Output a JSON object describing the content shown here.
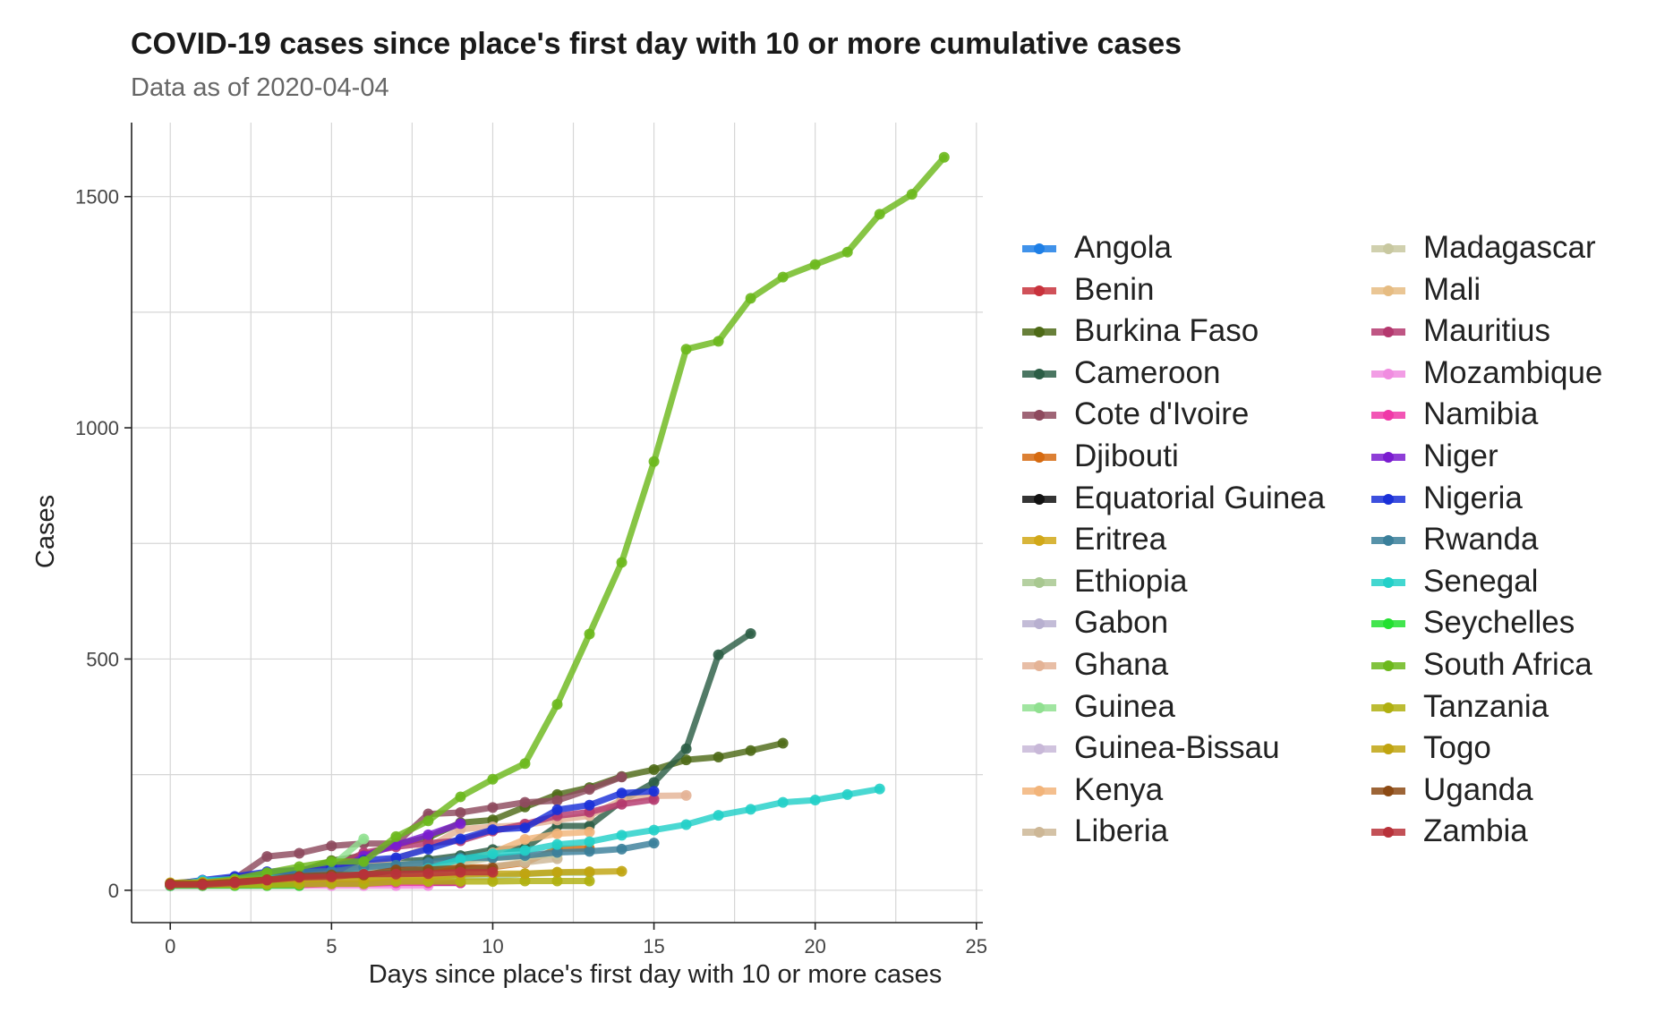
{
  "chart_data": {
    "type": "line",
    "title": "COVID-19 cases since place's first day with 10 or more cumulative cases",
    "subtitle": "Data as of 2020-04-04",
    "xlabel": "Days since place's first day with 10 or more cases",
    "ylabel": "Cases",
    "xlim": [
      -1.2,
      25.2
    ],
    "ylim": [
      -70,
      1660
    ],
    "x_ticks": [
      0,
      5,
      10,
      15,
      20,
      25
    ],
    "y_ticks": [
      0,
      500,
      1000,
      1500
    ],
    "grid": true,
    "legend_position": "right",
    "series": [
      {
        "name": "Angola",
        "color": "#1E7FE6",
        "x": [
          0,
          1,
          2,
          3,
          4
        ],
        "y": [
          10,
          10,
          14,
          14,
          14
        ]
      },
      {
        "name": "Benin",
        "color": "#C8323C",
        "x": [
          0,
          1,
          2,
          3,
          4,
          5,
          6,
          7,
          8,
          9
        ],
        "y": [
          13,
          16,
          16,
          20,
          22,
          26,
          26,
          26,
          26,
          26
        ]
      },
      {
        "name": "Burkina Faso",
        "color": "#4E6A17",
        "x": [
          0,
          1,
          2,
          3,
          4,
          5,
          6,
          7,
          8,
          9,
          10,
          11,
          12,
          13,
          14,
          15,
          16,
          17,
          18,
          19
        ],
        "y": [
          15,
          20,
          27,
          33,
          40,
          64,
          75,
          99,
          114,
          146,
          152,
          180,
          207,
          222,
          246,
          261,
          282,
          288,
          302,
          318
        ]
      },
      {
        "name": "Cameroon",
        "color": "#2C5E46",
        "x": [
          0,
          1,
          2,
          3,
          4,
          5,
          6,
          7,
          8,
          9,
          10,
          11,
          12,
          13,
          14,
          15,
          16,
          17,
          18
        ],
        "y": [
          10,
          13,
          20,
          27,
          40,
          40,
          56,
          62,
          66,
          75,
          88,
          91,
          139,
          139,
          193,
          233,
          306,
          509,
          555
        ]
      },
      {
        "name": "Cote d'Ivoire",
        "color": "#8E4A5E",
        "x": [
          0,
          1,
          2,
          3,
          4,
          5,
          6,
          7,
          8,
          9,
          10,
          11,
          12,
          13,
          14
        ],
        "y": [
          14,
          17,
          25,
          73,
          80,
          96,
          101,
          101,
          165,
          168,
          179,
          190,
          194,
          218,
          245
        ]
      },
      {
        "name": "Djibouti",
        "color": "#D66A10",
        "x": [
          0,
          1,
          2,
          3,
          4,
          5,
          6,
          7,
          8,
          9,
          10,
          11,
          12,
          13
        ],
        "y": [
          11,
          12,
          14,
          18,
          18,
          30,
          33,
          40,
          49,
          49,
          50,
          59,
          90,
          90
        ]
      },
      {
        "name": "Equatorial Guinea",
        "color": "#111111",
        "x": [
          0,
          1,
          2,
          3,
          4,
          5,
          6,
          7,
          8,
          9
        ],
        "y": [
          12,
          12,
          12,
          12,
          13,
          14,
          15,
          16,
          16,
          16
        ]
      },
      {
        "name": "Eritrea",
        "color": "#D1A818",
        "x": [
          0,
          1,
          2,
          3,
          4,
          5,
          6,
          7,
          8,
          9
        ],
        "y": [
          12,
          12,
          12,
          15,
          15,
          22,
          22,
          22,
          22,
          29
        ]
      },
      {
        "name": "Ethiopia",
        "color": "#A8C890",
        "x": [
          0,
          1,
          2,
          3,
          4,
          5,
          6,
          7,
          8,
          9,
          10,
          11,
          12,
          13
        ],
        "y": [
          11,
          12,
          12,
          12,
          16,
          16,
          21,
          23,
          26,
          29,
          29,
          35,
          38,
          38
        ]
      },
      {
        "name": "Gabon",
        "color": "#B8B0D0",
        "x": [
          0,
          1,
          2,
          3,
          4,
          5,
          6,
          7,
          8
        ],
        "y": [
          11,
          11,
          13,
          16,
          16,
          18,
          18,
          21,
          21
        ]
      },
      {
        "name": "Ghana",
        "color": "#E4B396",
        "x": [
          0,
          1,
          2,
          3,
          4,
          5,
          6,
          7,
          8,
          9,
          10,
          11,
          12,
          13,
          14,
          15,
          16
        ],
        "y": [
          11,
          16,
          19,
          21,
          24,
          27,
          53,
          68,
          93,
          132,
          137,
          141,
          152,
          161,
          195,
          204,
          205
        ]
      },
      {
        "name": "Guinea",
        "color": "#90E090",
        "x": [
          0,
          1,
          2,
          3,
          4,
          5,
          6
        ],
        "y": [
          11,
          11,
          16,
          22,
          30,
          52,
          111
        ]
      },
      {
        "name": "Guinea-Bissau",
        "color": "#C8B8D8",
        "x": [
          0,
          1,
          2,
          3,
          4,
          5,
          6,
          7
        ],
        "y": [
          12,
          12,
          15,
          15,
          15,
          18,
          18,
          18
        ]
      },
      {
        "name": "Kenya",
        "color": "#F2B47A",
        "x": [
          0,
          1,
          2,
          3,
          4,
          5,
          6,
          7,
          8,
          9,
          10,
          11,
          12,
          13
        ],
        "y": [
          15,
          15,
          15,
          25,
          28,
          31,
          38,
          42,
          50,
          59,
          81,
          110,
          122,
          126
        ]
      },
      {
        "name": "Liberia",
        "color": "#CDB796",
        "x": [
          0,
          1,
          2,
          3,
          4,
          5,
          6,
          7,
          8,
          9,
          10,
          11,
          12
        ],
        "y": [
          10,
          10,
          13,
          13,
          14,
          15,
          18,
          22,
          30,
          40,
          52,
          60,
          68
        ]
      },
      {
        "name": "Madagascar",
        "color": "#C8C8A0",
        "x": [
          0,
          1,
          2,
          3,
          4,
          5,
          6,
          7,
          8,
          9,
          10,
          11,
          12
        ],
        "y": [
          12,
          17,
          19,
          23,
          26,
          39,
          43,
          57,
          57,
          59,
          70,
          72,
          77
        ]
      },
      {
        "name": "Mali",
        "color": "#E6BC82",
        "x": [
          0,
          1,
          2,
          3,
          4,
          5,
          6,
          7,
          8
        ],
        "y": [
          11,
          18,
          20,
          25,
          28,
          31,
          36,
          39,
          41
        ]
      },
      {
        "name": "Mauritius",
        "color": "#B4386E",
        "x": [
          0,
          1,
          2,
          3,
          4,
          5,
          6,
          7,
          8,
          9,
          10,
          11,
          12,
          13,
          14,
          15
        ],
        "y": [
          14,
          18,
          28,
          36,
          42,
          48,
          81,
          94,
          102,
          107,
          128,
          143,
          161,
          169,
          186,
          196
        ]
      },
      {
        "name": "Mozambique",
        "color": "#F08CE0",
        "x": [
          0,
          1,
          2,
          3,
          4,
          5,
          6,
          7,
          8
        ],
        "y": [
          10,
          10,
          10,
          10,
          10,
          10,
          10,
          10,
          10
        ]
      },
      {
        "name": "Namibia",
        "color": "#F038A8",
        "x": [
          0,
          1,
          2,
          3,
          4,
          5,
          6,
          7,
          8,
          9
        ],
        "y": [
          11,
          11,
          11,
          11,
          11,
          14,
          14,
          16,
          16,
          16
        ]
      },
      {
        "name": "Niger",
        "color": "#7A1CD0",
        "x": [
          0,
          1,
          2,
          3,
          4,
          5,
          6,
          7,
          8,
          9
        ],
        "y": [
          10,
          18,
          18,
          20,
          27,
          34,
          74,
          98,
          120,
          144
        ]
      },
      {
        "name": "Nigeria",
        "color": "#1A30D8",
        "x": [
          0,
          1,
          2,
          3,
          4,
          5,
          6,
          7,
          8,
          9,
          10,
          11,
          12,
          13,
          14,
          15
        ],
        "y": [
          12,
          22,
          30,
          40,
          44,
          51,
          65,
          70,
          89,
          111,
          131,
          135,
          174,
          184,
          210,
          214
        ]
      },
      {
        "name": "Rwanda",
        "color": "#3A7F9A",
        "x": [
          0,
          1,
          2,
          3,
          4,
          5,
          6,
          7,
          8,
          9,
          10,
          11,
          12,
          13,
          14,
          15
        ],
        "y": [
          11,
          17,
          19,
          36,
          40,
          41,
          50,
          54,
          60,
          70,
          70,
          75,
          82,
          84,
          89,
          102
        ]
      },
      {
        "name": "Senegal",
        "color": "#22D0C8",
        "x": [
          0,
          1,
          2,
          3,
          4,
          5,
          6,
          7,
          8,
          9,
          10,
          11,
          12,
          13,
          14,
          15,
          16,
          17,
          18,
          19,
          20,
          21,
          22
        ],
        "y": [
          10,
          21,
          24,
          26,
          27,
          31,
          36,
          38,
          47,
          67,
          79,
          86,
          99,
          105,
          119,
          130,
          142,
          162,
          175,
          190,
          195,
          207,
          219
        ]
      },
      {
        "name": "Seychelles",
        "color": "#22E030",
        "x": [
          0,
          1,
          2,
          3,
          4
        ],
        "y": [
          10,
          10,
          10,
          10,
          10
        ]
      },
      {
        "name": "South Africa",
        "color": "#6CB81C",
        "x": [
          0,
          1,
          2,
          3,
          4,
          5,
          6,
          7,
          8,
          9,
          10,
          11,
          12,
          13,
          14,
          15,
          16,
          17,
          18,
          19,
          20,
          21,
          22,
          23,
          24
        ],
        "y": [
          13,
          16,
          24,
          38,
          51,
          62,
          62,
          116,
          150,
          202,
          240,
          274,
          402,
          554,
          709,
          927,
          1170,
          1187,
          1280,
          1326,
          1353,
          1380,
          1462,
          1505,
          1585
        ]
      },
      {
        "name": "Tanzania",
        "color": "#B0B010",
        "x": [
          0,
          1,
          2,
          3,
          4,
          5,
          6,
          7,
          8,
          9,
          10,
          11,
          12,
          13
        ],
        "y": [
          12,
          12,
          12,
          12,
          13,
          14,
          14,
          19,
          19,
          19,
          19,
          20,
          20,
          20
        ]
      },
      {
        "name": "Togo",
        "color": "#C0A410",
        "x": [
          0,
          1,
          2,
          3,
          4,
          5,
          6,
          7,
          8,
          9,
          10,
          11,
          12,
          13,
          14
        ],
        "y": [
          16,
          17,
          20,
          23,
          24,
          25,
          25,
          30,
          30,
          34,
          36,
          36,
          39,
          40,
          41
        ]
      },
      {
        "name": "Uganda",
        "color": "#8C4A14",
        "x": [
          0,
          1,
          2,
          3,
          4,
          5,
          6,
          7,
          8,
          9,
          10
        ],
        "y": [
          14,
          14,
          18,
          23,
          30,
          33,
          33,
          44,
          45,
          48,
          48
        ]
      },
      {
        "name": "Zambia",
        "color": "#B8323A",
        "x": [
          0,
          1,
          2,
          3,
          4,
          5,
          6,
          7,
          8,
          9,
          10
        ],
        "y": [
          12,
          12,
          16,
          22,
          28,
          29,
          35,
          35,
          36,
          39,
          39
        ]
      }
    ]
  }
}
